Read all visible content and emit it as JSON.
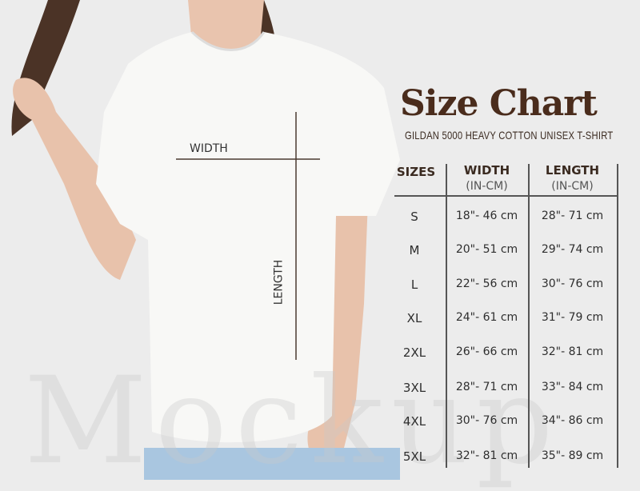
{
  "header": {
    "title": "Size Chart",
    "subtitle": "GILDAN 5000 HEAVY COTTON UNISEX T-SHIRT"
  },
  "table": {
    "columns": [
      {
        "label": "SIZES",
        "unit": ""
      },
      {
        "label": "WIDTH",
        "unit": "(IN-CM)"
      },
      {
        "label": "LENGTH",
        "unit": "(IN-CM)"
      }
    ],
    "rows": [
      {
        "size": "S",
        "width": "18\"- 46 cm",
        "length": "28\"- 71 cm"
      },
      {
        "size": "M",
        "width": "20\"- 51 cm",
        "length": "29\"- 74 cm"
      },
      {
        "size": "L",
        "width": "22\"- 56 cm",
        "length": "30\"- 76 cm"
      },
      {
        "size": "XL",
        "width": "24\"- 61 cm",
        "length": "31\"- 79 cm"
      },
      {
        "size": "2XL",
        "width": "26\"- 66 cm",
        "length": "32\"- 81 cm"
      },
      {
        "size": "3XL",
        "width": "28\"- 71 cm",
        "length": "33\"- 84 cm"
      },
      {
        "size": "4XL",
        "width": "30\"- 76 cm",
        "length": "34\"- 86 cm"
      },
      {
        "size": "5XL",
        "width": "32\"- 81 cm",
        "length": "35\"- 89 cm"
      }
    ]
  },
  "measurements": {
    "width_label": "WIDTH",
    "length_label": "LENGTH"
  },
  "watermark": "Mockup",
  "colors": {
    "title": "#4a2c1c",
    "background": "#ececec",
    "shirt": "#f8f8f6"
  }
}
